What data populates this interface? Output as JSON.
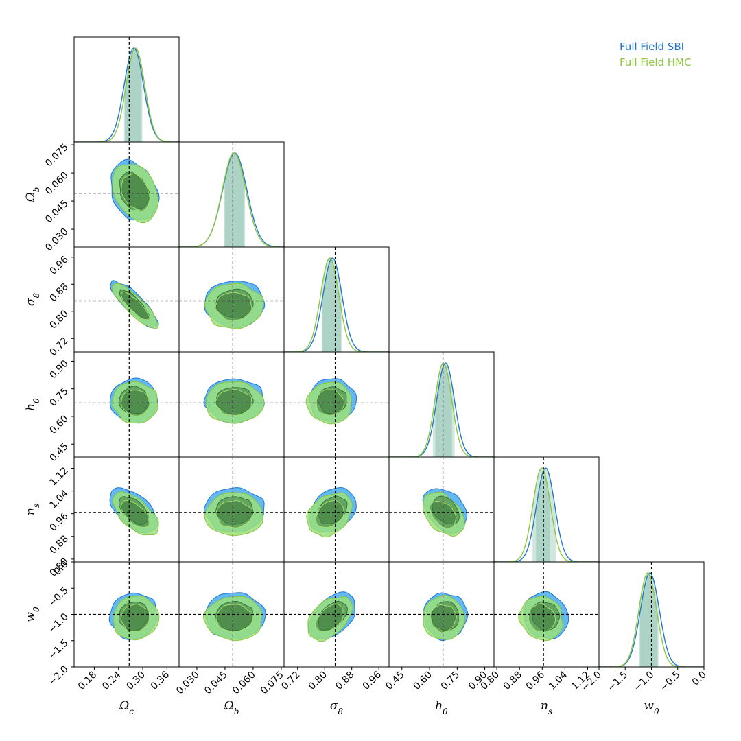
{
  "chart_data": {
    "type": "corner",
    "title": "",
    "params": [
      {
        "name": "omega_c",
        "label": "Ωc",
        "label_main": "Ω",
        "label_sub": "c",
        "range": [
          0.13,
          0.39
        ],
        "ticks": [
          0.18,
          0.24,
          0.3,
          0.36
        ],
        "tick_labels": [
          "0.18",
          "0.24",
          "0.30",
          "0.36"
        ],
        "truth": 0.2664
      },
      {
        "name": "omega_b",
        "label": "Ωb",
        "label_main": "Ω",
        "label_sub": "b",
        "range": [
          0.0205,
          0.0765
        ],
        "ticks": [
          0.03,
          0.045,
          0.06,
          0.075
        ],
        "tick_labels": [
          "0.030",
          "0.045",
          "0.060",
          "0.075"
        ],
        "truth": 0.0492
      },
      {
        "name": "sigma_8",
        "label": "σ8",
        "label_main": "σ",
        "label_sub": "8",
        "range": [
          0.68,
          0.99
        ],
        "ticks": [
          0.72,
          0.8,
          0.88,
          0.96
        ],
        "tick_labels": [
          "0.72",
          "0.80",
          "0.88",
          "0.96"
        ],
        "truth": 0.831
      },
      {
        "name": "h_0",
        "label": "h0",
        "label_main": "h",
        "label_sub": "0",
        "range": [
          0.38,
          0.95
        ],
        "ticks": [
          0.45,
          0.6,
          0.75,
          0.9
        ],
        "tick_labels": [
          "0.45",
          "0.60",
          "0.75",
          "0.90"
        ],
        "truth": 0.6727
      },
      {
        "name": "n_s",
        "label": "ns",
        "label_main": "n",
        "label_sub": "s",
        "range": [
          0.79,
          1.16
        ],
        "ticks": [
          0.8,
          0.88,
          0.96,
          1.04,
          1.12
        ],
        "tick_labels": [
          "0.80",
          "0.88",
          "0.96",
          "1.04",
          "1.12"
        ],
        "truth": 0.9645
      },
      {
        "name": "w_0",
        "label": "w0",
        "label_main": "w",
        "label_sub": "0",
        "range": [
          -2.0,
          0.0
        ],
        "ticks": [
          -2.0,
          -1.5,
          -1.0,
          -0.5,
          0.0
        ],
        "tick_labels": [
          "−2.0",
          "−1.5",
          "−1.0",
          "−0.5",
          "0.0"
        ],
        "truth": -1.0
      }
    ],
    "series": [
      {
        "name": "Full Field SBI",
        "color": "#1f77d0",
        "fill_outer": "#5ab4ee",
        "means": [
          0.278,
          0.0502,
          0.823,
          0.687,
          0.972,
          -1.03
        ],
        "sigmas": [
          0.024,
          0.0065,
          0.028,
          0.048,
          0.032,
          0.18
        ],
        "cred_intervals": [
          [
            0.253,
            0.297
          ],
          [
            0.0445,
            0.0555
          ],
          [
            0.792,
            0.853
          ],
          [
            0.628,
            0.738
          ],
          [
            0.935,
            1.01
          ],
          [
            -1.22,
            -0.85
          ]
        ],
        "correlations": [
          [
            1,
            -0.25,
            -0.85,
            0.0,
            -0.55,
            0.05
          ],
          [
            -0.25,
            1,
            0.0,
            0.0,
            0.0,
            0.0
          ],
          [
            -0.85,
            0.0,
            1,
            0.0,
            0.3,
            0.45
          ],
          [
            0.0,
            0.0,
            0.0,
            1,
            -0.35,
            0.0
          ],
          [
            -0.55,
            0.0,
            0.3,
            -0.35,
            1,
            -0.1
          ],
          [
            0.05,
            0.0,
            0.45,
            0.0,
            -0.1,
            1
          ]
        ]
      },
      {
        "name": "Full Field HMC",
        "color": "#8cc63f",
        "fill_outer": "#9be07a",
        "means": [
          0.282,
          0.0498,
          0.815,
          0.675,
          0.958,
          -1.07
        ],
        "sigmas": [
          0.023,
          0.0063,
          0.027,
          0.046,
          0.031,
          0.17
        ],
        "cred_intervals": [
          [
            0.254,
            0.3
          ],
          [
            0.0445,
            0.0555
          ],
          [
            0.79,
            0.848
          ],
          [
            0.616,
            0.724
          ],
          [
            0.925,
            0.99
          ],
          [
            -1.24,
            -0.88
          ]
        ],
        "correlations": [
          [
            1,
            -0.3,
            -0.85,
            -0.05,
            -0.6,
            0.05
          ],
          [
            -0.3,
            1,
            0.0,
            0.0,
            0.0,
            0.0
          ],
          [
            -0.85,
            0.0,
            1,
            0.0,
            0.3,
            0.45
          ],
          [
            -0.05,
            0.0,
            0.0,
            1,
            -0.4,
            0.0
          ],
          [
            -0.6,
            0.0,
            0.3,
            -0.4,
            1,
            -0.1
          ],
          [
            0.05,
            0.0,
            0.45,
            0.0,
            -0.1,
            1
          ]
        ]
      }
    ],
    "legend": {
      "location": "top-right",
      "entries": [
        "Full Field SBI",
        "Full Field HMC"
      ]
    },
    "truth_line_style": "dashed-black",
    "contour_levels": [
      "68%",
      "95%"
    ],
    "grid": false
  }
}
